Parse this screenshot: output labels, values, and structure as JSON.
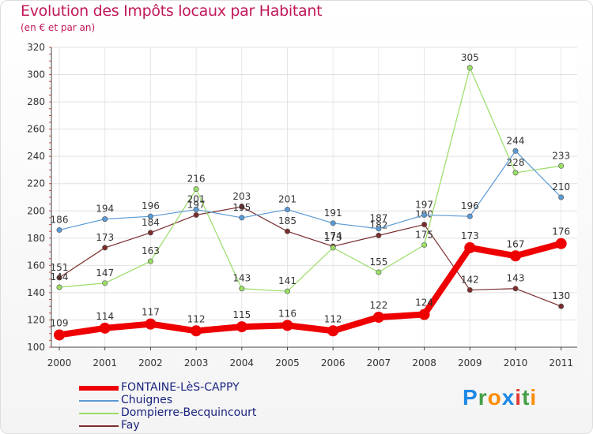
{
  "header": {
    "title": "Evolution des Impôts locaux par Habitant",
    "subtitle": "(en € et par an)"
  },
  "logo": {
    "text": "Proxiti",
    "letters": [
      "P",
      "r",
      "o",
      "x",
      "i",
      "t",
      "i"
    ],
    "colors": [
      "#1e88e5",
      "#43a047",
      "#fb8c00",
      "#1e88e5",
      "#e53935",
      "#43a047",
      "#fb8c00"
    ]
  },
  "chart_data": {
    "type": "line",
    "title": "Evolution des Impôts locaux par Habitant",
    "ylabel": "(en € et par an)",
    "xlabel": "",
    "categories": [
      "2000",
      "2001",
      "2002",
      "2003",
      "2004",
      "2005",
      "2006",
      "2007",
      "2008",
      "2009",
      "2010",
      "2011"
    ],
    "ylim": [
      100,
      320
    ],
    "yticks": [
      100,
      120,
      140,
      160,
      180,
      200,
      220,
      240,
      260,
      280,
      300,
      320
    ],
    "grid": true,
    "legend_position": "bottom-left",
    "series": [
      {
        "name": "FONTAINE-LèS-CAPPY",
        "color": "#ee0000",
        "values": [
          109,
          114,
          117,
          112,
          115,
          116,
          112,
          122,
          124,
          173,
          167,
          176
        ],
        "labels": [
          "109",
          "114",
          "117",
          "112",
          "115",
          "116",
          "112",
          "122",
          "124",
          "173",
          "167",
          "176"
        ],
        "emphasis": true
      },
      {
        "name": "Chuignes",
        "color": "#5b9bd5",
        "values": [
          186,
          194,
          196,
          201,
          195,
          201,
          191,
          187,
          197,
          196,
          244,
          210
        ],
        "labels": [
          "186",
          "194",
          "196",
          "201",
          "195",
          "201",
          "191",
          "187",
          "197",
          "196",
          "244",
          "210"
        ]
      },
      {
        "name": "Dompierre-Becquincourt",
        "color": "#99dd66",
        "values": [
          144,
          147,
          163,
          216,
          143,
          141,
          173,
          155,
          175,
          305,
          228,
          233
        ],
        "labels": [
          "144",
          "147",
          "163",
          "216",
          "143",
          "141",
          "173",
          "155",
          "175",
          "305",
          "228",
          "233"
        ]
      },
      {
        "name": "Fay",
        "color": "#7b2d2d",
        "values": [
          151,
          173,
          184,
          197,
          203,
          185,
          174,
          182,
          190,
          142,
          143,
          130
        ],
        "labels": [
          "151",
          "173",
          "184",
          "197",
          "203",
          "185",
          "174",
          "182",
          "190",
          "142",
          "143",
          "130"
        ]
      }
    ]
  }
}
